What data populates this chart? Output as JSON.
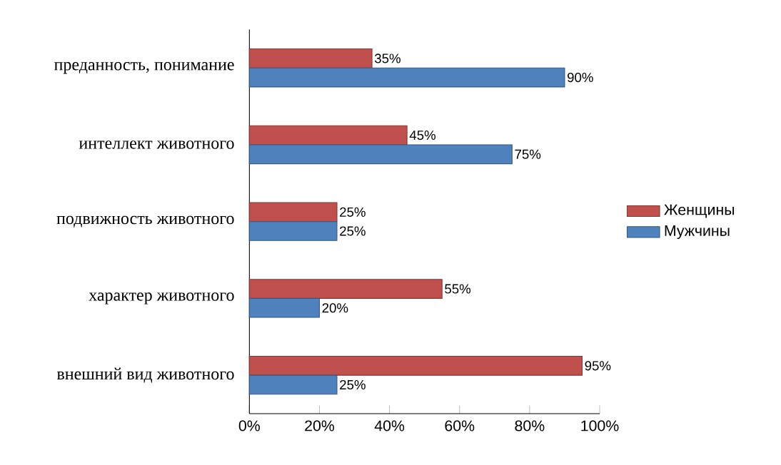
{
  "chart_data": {
    "type": "bar",
    "orientation": "horizontal",
    "categories": [
      "преданность, понимание",
      "интеллект животного",
      "подвижность животного",
      "характер животного",
      "внешний вид животного"
    ],
    "series": [
      {
        "name": "Женщины",
        "color": "#c0504d",
        "values": [
          35,
          45,
          25,
          55,
          95
        ],
        "value_labels": [
          "35%",
          "45%",
          "25%",
          "55%",
          "95%"
        ]
      },
      {
        "name": "Мужчины",
        "color": "#4f81bd",
        "values": [
          90,
          75,
          25,
          20,
          25
        ],
        "value_labels": [
          "90%",
          "75%",
          "25%",
          "20%",
          "25%"
        ]
      }
    ],
    "xlim": [
      0,
      100
    ],
    "xticks": [
      {
        "value": 0,
        "label": "0%"
      },
      {
        "value": 20,
        "label": "20%"
      },
      {
        "value": 40,
        "label": "40%"
      },
      {
        "value": 60,
        "label": "60%"
      },
      {
        "value": 80,
        "label": "80%"
      },
      {
        "value": 100,
        "label": "100%"
      }
    ],
    "legend": "right",
    "grid": false
  }
}
